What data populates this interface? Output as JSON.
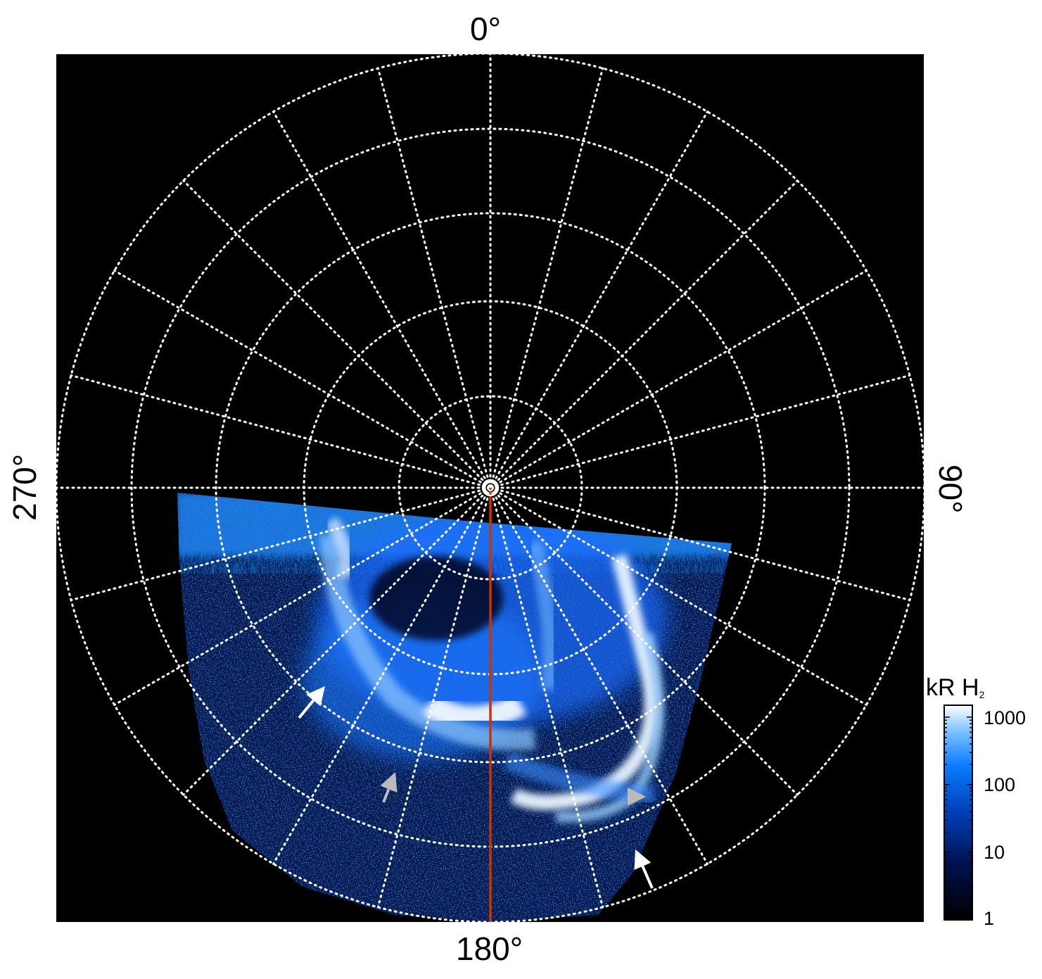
{
  "figure": {
    "type": "polar auroral emission image (Jupiter UV aurora)",
    "azimuth_labels": {
      "top": "0°",
      "right": "90°",
      "bottom": "180°",
      "left": "270°"
    },
    "colorbar": {
      "title_main": "kR H",
      "title_sub": "2",
      "ticks": [
        "1000",
        "100",
        "10",
        "1"
      ],
      "scale": "log",
      "range": [
        1,
        1500
      ],
      "colors": {
        "low": "#000000",
        "mid_dark": "#001a66",
        "mid": "#0a6cff",
        "high": "#ffffff"
      }
    },
    "grid": {
      "style": "dotted",
      "color": "#ffffff",
      "meridian_step_deg": 15,
      "latitude_rings": 6
    },
    "reference_line": {
      "longitude_label": "180°",
      "color": "#cc3300"
    },
    "markers": [
      {
        "kind": "arrow",
        "color": "#ffffff"
      },
      {
        "kind": "arrow",
        "color": "#bbbbbb"
      },
      {
        "kind": "arrowhead",
        "color": "#bbbbbb"
      },
      {
        "kind": "arrow",
        "color": "#ffffff"
      }
    ],
    "background": "#000000"
  }
}
